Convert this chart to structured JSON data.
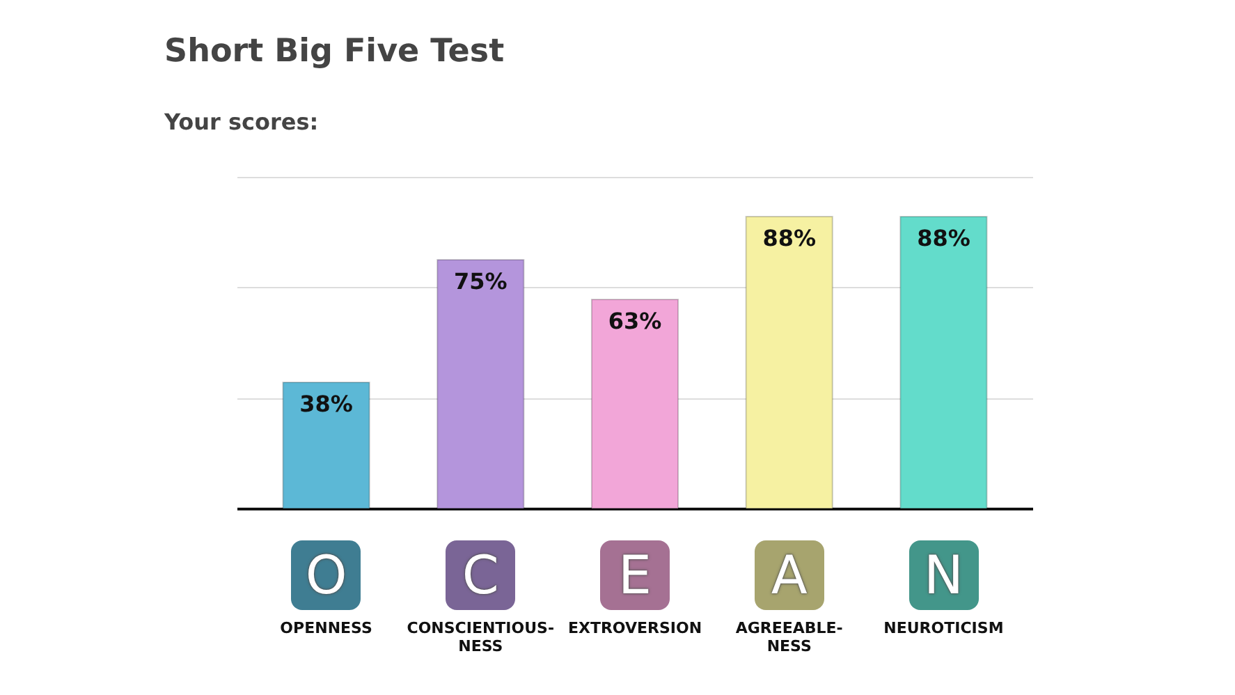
{
  "chart_data": {
    "type": "bar",
    "title": "Short Big Five Test",
    "subtitle": "Your scores:",
    "categories": [
      "OPENNESS",
      "CONSCIENTIOUS-\nNESS",
      "EXTROVERSION",
      "AGREEABLE-\nNESS",
      "NEUROTICISM"
    ],
    "values": [
      38,
      75,
      63,
      88,
      88
    ],
    "colors": [
      "#5cb8d6",
      "#b495dc",
      "#f2a6d8",
      "#f6f1a2",
      "#63dccb"
    ],
    "value_labels": [
      "38%",
      "75%",
      "63%",
      "88%",
      "88%"
    ],
    "annotations": [
      "O",
      "C",
      "E",
      "A",
      "N"
    ],
    "ylim": [
      0,
      100
    ],
    "yticks": [
      {
        "value": 0,
        "label": null
      },
      {
        "value": 33.3,
        "label": null
      },
      {
        "value": 66.7,
        "label": null
      },
      {
        "value": 100,
        "label": null
      }
    ],
    "grid": "y",
    "tick_labels": "x"
  }
}
